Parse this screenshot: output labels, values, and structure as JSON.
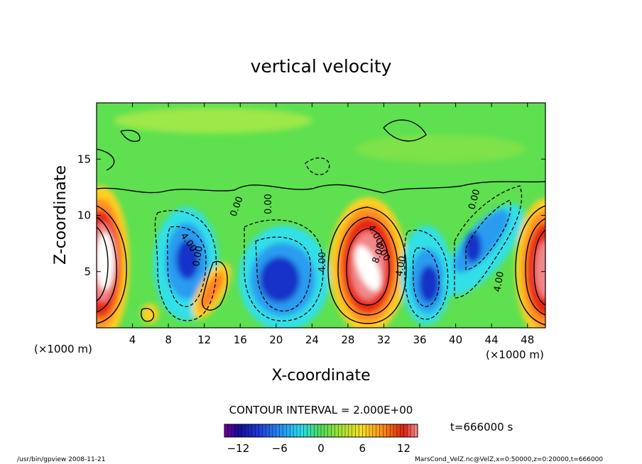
{
  "chart_data": {
    "type": "heatmap",
    "title": "vertical velocity",
    "xlabel": "X-coordinate",
    "ylabel": "Z-coordinate",
    "xunit_left": "(×1000 m)",
    "xunit_right": "(×1000 m)",
    "xlim": [
      0,
      50
    ],
    "ylim": [
      0,
      20
    ],
    "xticks": [
      4,
      8,
      12,
      16,
      20,
      24,
      28,
      32,
      36,
      40,
      44,
      48
    ],
    "yticks": [
      5,
      10,
      15
    ],
    "contour_interval_text": "CONTOUR INTERVAL = 2.000E+00",
    "contour_labels": [
      "4.00",
      "0.00",
      "0.00",
      "0.00",
      "4.00",
      "4.00",
      "0.00",
      "8.00",
      "4.00",
      "0.00",
      "4.00"
    ],
    "colorbar": {
      "min": -14,
      "max": 14,
      "ticks": [
        -12,
        -6,
        0,
        6,
        12
      ]
    },
    "features": [
      {
        "sign": "up",
        "x": 1,
        "z": 5.5,
        "peak": 14
      },
      {
        "sign": "down",
        "x": 10,
        "z": 6,
        "peak": -12
      },
      {
        "sign": "up",
        "x": 13,
        "z": 4,
        "peak": 8
      },
      {
        "sign": "down",
        "x": 20,
        "z": 4,
        "peak": -12
      },
      {
        "sign": "up",
        "x": 30,
        "z": 6.5,
        "peak": 14
      },
      {
        "sign": "down",
        "x": 37,
        "z": 4,
        "peak": -12
      },
      {
        "sign": "down",
        "x": 42,
        "z": 7,
        "peak": -10
      },
      {
        "sign": "up",
        "x": 49.5,
        "z": 6,
        "peak": 12
      }
    ]
  },
  "time_label": "t=666000 s",
  "footer_left": "/usr/bin/gpview   2008-11-21",
  "footer_right": "MarsCond_VelZ.nc@VelZ,x=0:50000,z=0:20000,t=666000"
}
